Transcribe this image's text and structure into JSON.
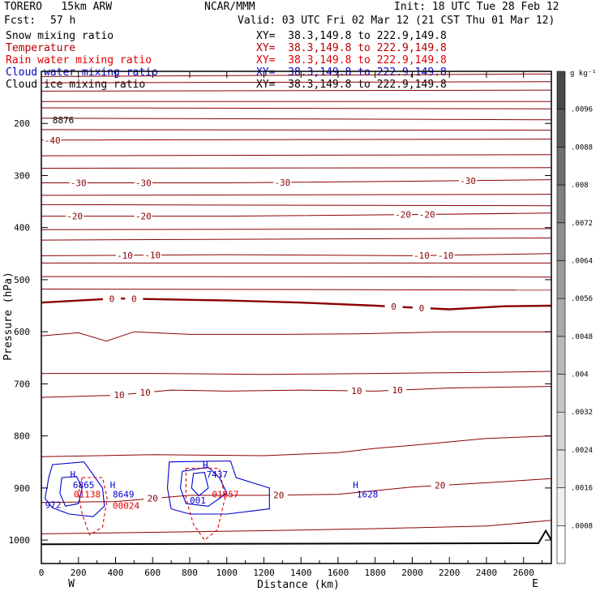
{
  "header": {
    "model": "TORERO   15km ARW",
    "center": "NCAR/MMM",
    "init": "Init: 18 UTC Tue 28 Feb 12",
    "fcst_label": "Fcst:",
    "fcst_value": "57 h",
    "valid": "Valid: 03 UTC Fri 02 Mar 12 (21 CST Thu 01 Mar 12)"
  },
  "fields": [
    {
      "name": "Snow mixing ratio",
      "xy": "XY=  38.3,149.8 to 222.9,149.8",
      "color": "#000000"
    },
    {
      "name": "Temperature",
      "xy": "XY=  38.3,149.8 to 222.9,149.8",
      "color": "#b00000"
    },
    {
      "name": "Rain water mixing ratio",
      "xy": "XY=  38.3,149.8 to 222.9,149.8",
      "color": "#e00000"
    },
    {
      "name": "Cloud water mixing ratio",
      "xy": "XY=  38.3,149.8 to 222.9,149.8",
      "color": "#0000cc"
    },
    {
      "name": "Cloud ice mixing ratio",
      "xy": "XY=  38.3,149.8 to 222.9,149.8",
      "color": "#000000"
    }
  ],
  "chart_data": {
    "type": "contour cross-section",
    "xlabel": "Distance (km)",
    "ylabel": "Pressure (hPa)",
    "xlim": [
      0,
      2750
    ],
    "ylim": [
      1045,
      100
    ],
    "x_ticks": [
      0,
      200,
      400,
      600,
      800,
      1000,
      1200,
      1400,
      1600,
      1800,
      2000,
      2200,
      2400,
      2600
    ],
    "y_ticks": [
      200,
      300,
      400,
      500,
      600,
      700,
      800,
      900,
      1000
    ],
    "x_end_labels": {
      "left": "W",
      "right": "E"
    },
    "colorbar": {
      "unit": "g kg⁻¹",
      "ticks": [
        ".0008",
        ".0016",
        ".0024",
        ".0032",
        ".004",
        ".0048",
        ".0056",
        ".0064",
        ".0072",
        ".008",
        ".0088",
        ".0096"
      ],
      "colors": [
        "#ffffff",
        "#f0f0f0",
        "#e2e2e2",
        "#d4d4d4",
        "#c6c6c6",
        "#b8b8b8",
        "#aaaaaa",
        "#9c9c9c",
        "#8e8e8e",
        "#808080",
        "#6e6e6e",
        "#5a5a5a",
        "#484848"
      ]
    },
    "temperature_contours": [
      {
        "p": [
          [
            0,
            110
          ],
          [
            2750,
            105
          ]
        ]
      },
      {
        "p": [
          [
            0,
            122
          ],
          [
            2750,
            120
          ]
        ]
      },
      {
        "p": [
          [
            0,
            138
          ],
          [
            2750,
            136
          ]
        ]
      },
      {
        "p": [
          [
            0,
            158
          ],
          [
            2750,
            158
          ]
        ]
      },
      {
        "p": [
          [
            0,
            170
          ],
          [
            2750,
            172
          ]
        ]
      },
      {
        "p": [
          [
            0,
            190
          ],
          [
            2750,
            193
          ]
        ]
      },
      {
        "p": [
          [
            0,
            212
          ],
          [
            2750,
            213
          ]
        ]
      },
      {
        "p": [
          [
            0,
            232
          ],
          [
            2750,
            230
          ]
        ],
        "label": "-40",
        "label_x": [
          60
        ]
      },
      {
        "p": [
          [
            0,
            262
          ],
          [
            2750,
            260
          ]
        ]
      },
      {
        "p": [
          [
            0,
            286
          ],
          [
            2750,
            285
          ]
        ]
      },
      {
        "p": [
          [
            0,
            314
          ],
          [
            1000,
            314
          ],
          [
            2000,
            311
          ],
          [
            2750,
            308
          ]
        ],
        "label": "-30",
        "label_x": [
          200,
          550,
          1300,
          2300
        ]
      },
      {
        "p": [
          [
            0,
            338
          ],
          [
            2750,
            336
          ]
        ]
      },
      {
        "p": [
          [
            0,
            356
          ],
          [
            2750,
            358
          ]
        ]
      },
      {
        "p": [
          [
            0,
            378
          ],
          [
            1000,
            378
          ],
          [
            2000,
            375
          ],
          [
            2750,
            372
          ]
        ],
        "label": "-20",
        "label_x": [
          180,
          550,
          1950,
          2080
        ]
      },
      {
        "p": [
          [
            0,
            404
          ],
          [
            2750,
            402
          ]
        ]
      },
      {
        "p": [
          [
            0,
            424
          ],
          [
            2750,
            420
          ]
        ]
      },
      {
        "p": [
          [
            0,
            454
          ],
          [
            1000,
            452
          ],
          [
            2000,
            454
          ],
          [
            2750,
            450
          ]
        ],
        "label": "-10",
        "label_x": [
          450,
          600,
          2050,
          2180
        ]
      },
      {
        "p": [
          [
            0,
            468
          ],
          [
            2750,
            468
          ]
        ]
      },
      {
        "p": [
          [
            0,
            494
          ],
          [
            2750,
            495
          ]
        ]
      },
      {
        "p": [
          [
            0,
            518
          ],
          [
            2750,
            520
          ]
        ]
      },
      {
        "p": [
          [
            0,
            544
          ],
          [
            400,
            536
          ],
          [
            1000,
            540
          ],
          [
            1400,
            544
          ],
          [
            1800,
            550
          ],
          [
            2200,
            557
          ],
          [
            2500,
            551
          ],
          [
            2750,
            550
          ]
        ],
        "label": "0",
        "label_x": [
          380,
          500,
          1900,
          2050
        ],
        "bold": true
      },
      {
        "p": [
          [
            0,
            608
          ],
          [
            200,
            602
          ],
          [
            350,
            618
          ],
          [
            500,
            600
          ],
          [
            800,
            605
          ],
          [
            1300,
            605
          ],
          [
            1700,
            604
          ],
          [
            2200,
            600
          ],
          [
            2750,
            600
          ]
        ]
      },
      {
        "p": [
          [
            0,
            680
          ],
          [
            600,
            680
          ],
          [
            1200,
            682
          ],
          [
            1800,
            680
          ],
          [
            2400,
            678
          ],
          [
            2750,
            676
          ]
        ]
      },
      {
        "p": [
          [
            0,
            726
          ],
          [
            400,
            722
          ],
          [
            700,
            712
          ],
          [
            1000,
            714
          ],
          [
            1400,
            712
          ],
          [
            1800,
            714
          ],
          [
            2200,
            708
          ],
          [
            2750,
            705
          ]
        ],
        "label": "10",
        "label_x": [
          420,
          560,
          1700,
          1920
        ]
      },
      {
        "p": [
          [
            0,
            840
          ],
          [
            600,
            836
          ],
          [
            1200,
            838
          ],
          [
            1600,
            832
          ],
          [
            1800,
            824
          ],
          [
            2000,
            818
          ],
          [
            2400,
            805
          ],
          [
            2750,
            800
          ]
        ]
      },
      {
        "p": [
          [
            0,
            928
          ],
          [
            400,
            926
          ],
          [
            800,
            914
          ],
          [
            1200,
            914
          ],
          [
            1600,
            912
          ],
          [
            2000,
            898
          ],
          [
            2400,
            890
          ],
          [
            2750,
            882
          ]
        ],
        "label": "20",
        "label_x": [
          600,
          1280,
          2150
        ]
      },
      {
        "p": [
          [
            0,
            988
          ],
          [
            600,
            985
          ],
          [
            1200,
            982
          ],
          [
            1800,
            978
          ],
          [
            2400,
            973
          ],
          [
            2750,
            962
          ]
        ]
      }
    ],
    "annotations": [
      {
        "x": 60,
        "p": 200,
        "text": "8876",
        "color": "#000000"
      },
      {
        "x": 20,
        "p": 938,
        "text": "972",
        "color": "#0000cc"
      },
      {
        "x": 155,
        "p": 880,
        "text": "H",
        "color": "#0000cc"
      },
      {
        "x": 170,
        "p": 900,
        "text": "6865",
        "color": "#0000cc"
      },
      {
        "x": 175,
        "p": 918,
        "text": "01138",
        "color": "#e00000"
      },
      {
        "x": 370,
        "p": 900,
        "text": "H",
        "color": "#0000cc"
      },
      {
        "x": 385,
        "p": 918,
        "text": "8649",
        "color": "#0000cc"
      },
      {
        "x": 385,
        "p": 940,
        "text": "00024",
        "color": "#e00000"
      },
      {
        "x": 870,
        "p": 862,
        "text": "H",
        "color": "#0000cc"
      },
      {
        "x": 890,
        "p": 880,
        "text": "7437",
        "color": "#0000cc"
      },
      {
        "x": 920,
        "p": 918,
        "text": "01657",
        "color": "#e00000"
      },
      {
        "x": 800,
        "p": 930,
        "text": "001",
        "color": "#0000cc"
      },
      {
        "x": 1680,
        "p": 900,
        "text": "H",
        "color": "#0000cc"
      },
      {
        "x": 1700,
        "p": 918,
        "text": "1628",
        "color": "#0000cc"
      }
    ],
    "cloud_regions": [
      {
        "color": "#0000cc",
        "loops": [
          [
            [
              60,
              855
            ],
            [
              230,
              850
            ],
            [
              270,
              870
            ],
            [
              330,
              900
            ],
            [
              340,
              935
            ],
            [
              280,
              955
            ],
            [
              150,
              950
            ],
            [
              60,
              938
            ],
            [
              20,
              920
            ],
            [
              40,
              880
            ]
          ],
          [
            [
              110,
              880
            ],
            [
              190,
              878
            ],
            [
              220,
              900
            ],
            [
              200,
              930
            ],
            [
              130,
              935
            ],
            [
              100,
              910
            ]
          ],
          [
            [
              690,
              850
            ],
            [
              1020,
              848
            ],
            [
              1050,
              880
            ],
            [
              1230,
              900
            ],
            [
              1230,
              940
            ],
            [
              1000,
              950
            ],
            [
              800,
              950
            ],
            [
              700,
              940
            ],
            [
              680,
              900
            ]
          ],
          [
            [
              760,
              868
            ],
            [
              900,
              860
            ],
            [
              960,
              880
            ],
            [
              1000,
              910
            ],
            [
              900,
              935
            ],
            [
              780,
              930
            ],
            [
              750,
              900
            ]
          ],
          [
            [
              820,
              872
            ],
            [
              880,
              870
            ],
            [
              900,
              900
            ],
            [
              850,
              915
            ],
            [
              810,
              900
            ]
          ]
        ]
      },
      {
        "color": "#e00000",
        "dashed": true,
        "loops": [
          [
            [
              220,
              880
            ],
            [
              330,
              880
            ],
            [
              355,
              920
            ],
            [
              330,
              975
            ],
            [
              260,
              990
            ],
            [
              220,
              950
            ],
            [
              200,
              910
            ]
          ],
          [
            [
              780,
              862
            ],
            [
              960,
              862
            ],
            [
              990,
              920
            ],
            [
              950,
              980
            ],
            [
              880,
              1000
            ],
            [
              820,
              970
            ],
            [
              780,
              920
            ]
          ]
        ]
      }
    ]
  }
}
